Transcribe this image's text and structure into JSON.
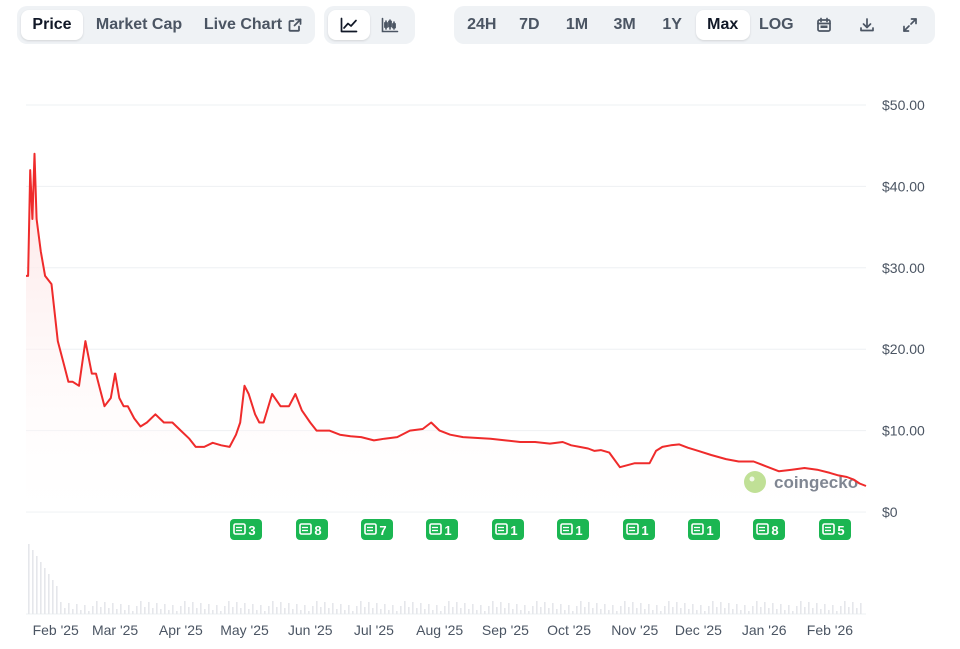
{
  "tabs": {
    "price": "Price",
    "market_cap": "Market Cap",
    "live_chart": "Live Chart"
  },
  "view_buttons": {
    "line": "line-chart-icon",
    "candle": "candlestick-chart-icon"
  },
  "ranges": [
    "24H",
    "7D",
    "1M",
    "3M",
    "1Y",
    "Max",
    "LOG"
  ],
  "active_range": "Max",
  "toolbar_icons": [
    "calendar-icon",
    "download-icon",
    "expand-icon"
  ],
  "watermark": "coingecko",
  "colors": {
    "line": "#ef2b2b",
    "fill_top": "#fde2e2",
    "badge": "#1bb652",
    "grid": "#eef0f3"
  },
  "chart_data": {
    "type": "area",
    "title": "",
    "xlabel": "",
    "ylabel": "",
    "ylim": [
      0,
      50
    ],
    "y_tick_values": [
      0,
      10,
      20,
      30,
      40,
      50
    ],
    "y_tick_labels": [
      "$0",
      "$10.00",
      "$20.00",
      "$30.00",
      "$40.00",
      "$50.00"
    ],
    "x_tick_labels": [
      "Feb '25",
      "Mar '25",
      "Apr '25",
      "May '25",
      "Jun '25",
      "Jul '25",
      "Aug '25",
      "Sep '25",
      "Oct '25",
      "Nov '25",
      "Dec '25",
      "Jan '26",
      "Feb '26"
    ],
    "x_tick_dates": [
      "2025-02-01",
      "2025-03-01",
      "2025-04-01",
      "2025-05-01",
      "2025-06-01",
      "2025-07-01",
      "2025-08-01",
      "2025-09-01",
      "2025-10-01",
      "2025-11-01",
      "2025-12-01",
      "2026-01-01",
      "2026-02-01"
    ],
    "grid": true,
    "series": [
      {
        "x": [
          "2025-01-18",
          "2025-01-19",
          "2025-01-20",
          "2025-01-21",
          "2025-01-22",
          "2025-01-23",
          "2025-01-25",
          "2025-01-27",
          "2025-01-30",
          "2025-02-02",
          "2025-02-05",
          "2025-02-07",
          "2025-02-09",
          "2025-02-12",
          "2025-02-15",
          "2025-02-18",
          "2025-02-20",
          "2025-02-22",
          "2025-02-24",
          "2025-02-27",
          "2025-03-01",
          "2025-03-03",
          "2025-03-05",
          "2025-03-07",
          "2025-03-10",
          "2025-03-13",
          "2025-03-16",
          "2025-03-20",
          "2025-03-24",
          "2025-03-28",
          "2025-04-01",
          "2025-04-05",
          "2025-04-08",
          "2025-04-12",
          "2025-04-16",
          "2025-04-20",
          "2025-04-24",
          "2025-04-27",
          "2025-04-29",
          "2025-05-01",
          "2025-05-03",
          "2025-05-06",
          "2025-05-08",
          "2025-05-10",
          "2025-05-14",
          "2025-05-18",
          "2025-05-22",
          "2025-05-25",
          "2025-05-28",
          "2025-06-01",
          "2025-06-04",
          "2025-06-07",
          "2025-06-10",
          "2025-06-15",
          "2025-06-20",
          "2025-06-25",
          "2025-07-01",
          "2025-07-06",
          "2025-07-12",
          "2025-07-18",
          "2025-07-24",
          "2025-07-28",
          "2025-08-01",
          "2025-08-06",
          "2025-08-12",
          "2025-08-18",
          "2025-08-25",
          "2025-09-01",
          "2025-09-08",
          "2025-09-15",
          "2025-09-22",
          "2025-09-28",
          "2025-10-02",
          "2025-10-06",
          "2025-10-10",
          "2025-10-13",
          "2025-10-16",
          "2025-10-20",
          "2025-10-25",
          "2025-11-01",
          "2025-11-05",
          "2025-11-08",
          "2025-11-11",
          "2025-11-14",
          "2025-11-18",
          "2025-11-22",
          "2025-11-26",
          "2025-12-01",
          "2025-12-07",
          "2025-12-14",
          "2025-12-20",
          "2025-12-27",
          "2026-01-02",
          "2026-01-08",
          "2026-01-14",
          "2026-01-20",
          "2026-01-26",
          "2026-02-01",
          "2026-02-05",
          "2026-02-09",
          "2026-02-12",
          "2026-02-15",
          "2026-02-18"
        ],
        "values": [
          29,
          29,
          42,
          36,
          44,
          36,
          32,
          29,
          28,
          21,
          18,
          16,
          16,
          15.5,
          21,
          17,
          17,
          15,
          13,
          14,
          17,
          14,
          13,
          13,
          11.5,
          10.5,
          11,
          12,
          11,
          11,
          10,
          9,
          8,
          8,
          8.5,
          8.2,
          8,
          9.5,
          11,
          15.5,
          14.5,
          12,
          11,
          11,
          14.5,
          13,
          13,
          14.5,
          12.5,
          11,
          10,
          10,
          10,
          9.5,
          9.3,
          9.2,
          8.8,
          9,
          9.2,
          10,
          10.2,
          11,
          10,
          9.5,
          9.2,
          9.1,
          9,
          8.8,
          8.6,
          8.6,
          8.4,
          8.6,
          8.2,
          8,
          7.8,
          7.5,
          7.6,
          7.3,
          5.5,
          6,
          6,
          6,
          7.5,
          8,
          8.2,
          8.3,
          7.9,
          7.5,
          7,
          6.5,
          6.2,
          6.2,
          5.6,
          5,
          5.2,
          5.4,
          5.2,
          4.8,
          4.5,
          4.3,
          4.0,
          3.5,
          3.2
        ]
      }
    ],
    "news_markers": [
      {
        "label": "3"
      },
      {
        "label": "8"
      },
      {
        "label": "7"
      },
      {
        "label": "1"
      },
      {
        "label": "1"
      },
      {
        "label": "1"
      },
      {
        "label": "1"
      },
      {
        "label": "1"
      },
      {
        "label": "8"
      },
      {
        "label": "5"
      }
    ]
  }
}
